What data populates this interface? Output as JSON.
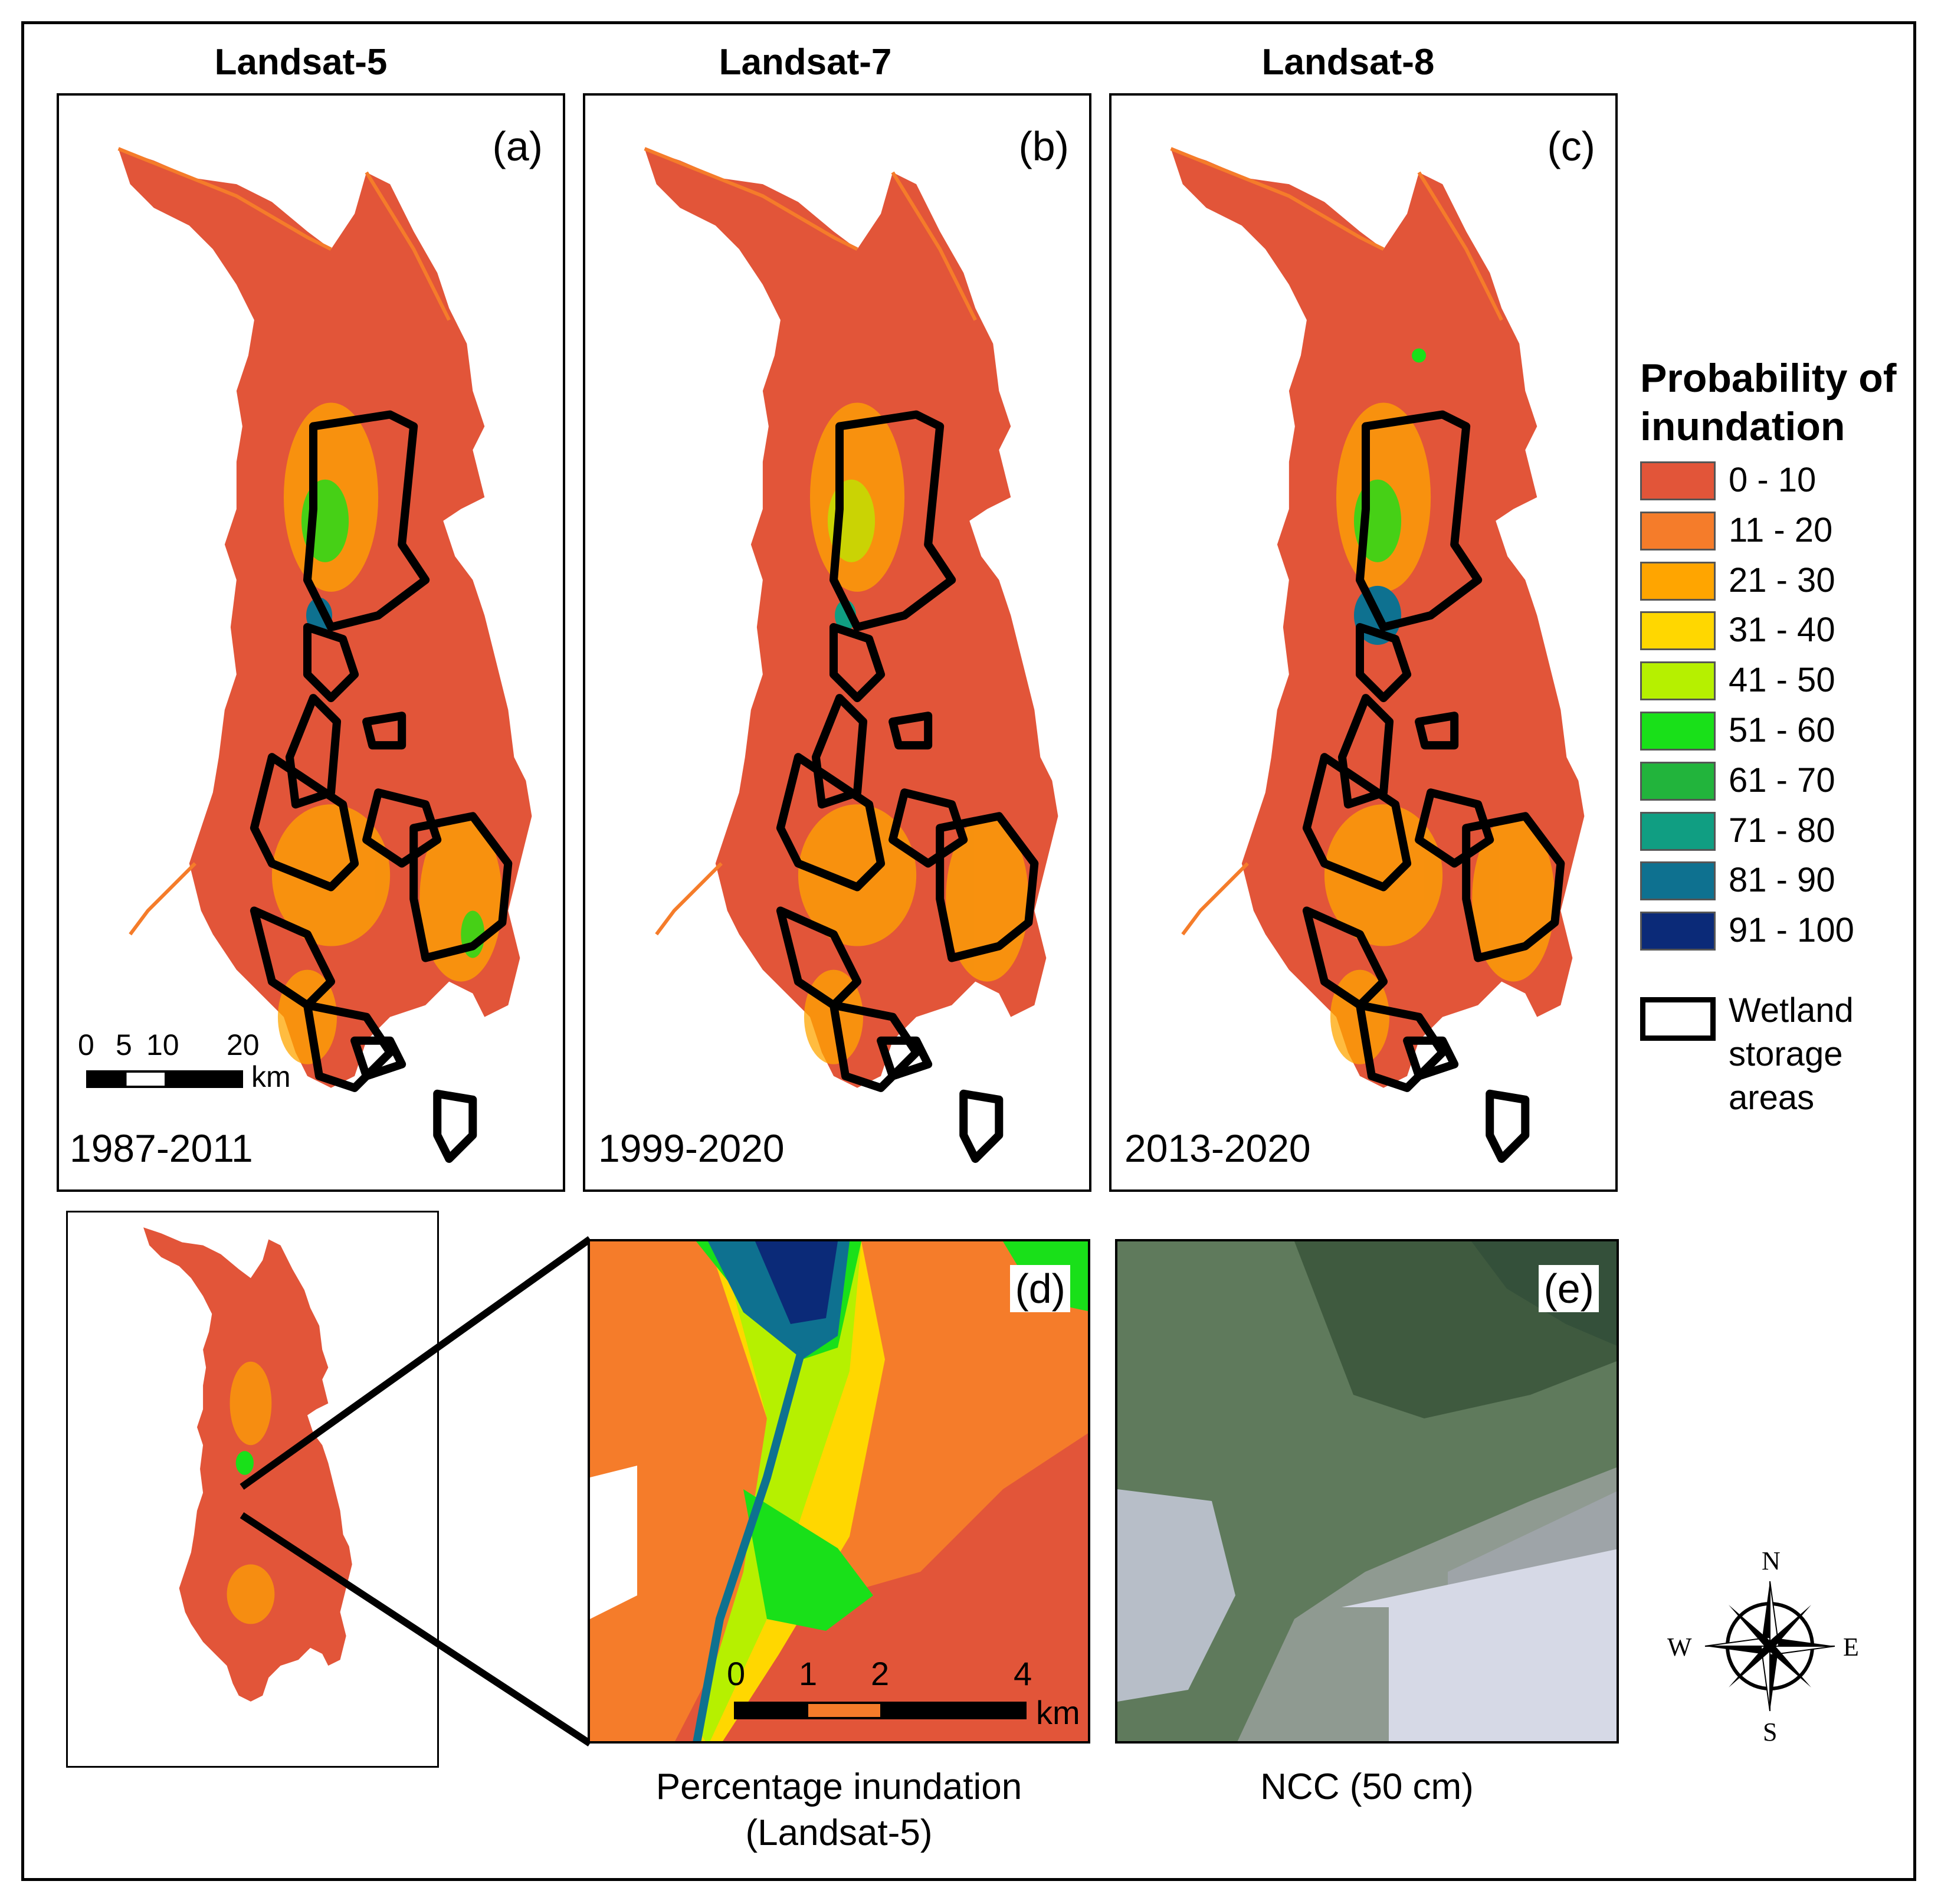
{
  "columns": [
    {
      "title": "Landsat-5",
      "letter": "(a)",
      "period": "1987-2011"
    },
    {
      "title": "Landsat-7",
      "letter": "(b)",
      "period": "1999-2020"
    },
    {
      "title": "Landsat-8",
      "letter": "(c)",
      "period": "2013-2020"
    }
  ],
  "scalebar_top": {
    "ticks": [
      "0",
      "5",
      "10",
      "20"
    ],
    "unit": "km"
  },
  "legend": {
    "title_line1": "Probability of",
    "title_line2": "inundation",
    "classes": [
      {
        "label": "0 - 10",
        "color": "#e25539"
      },
      {
        "label": "11 - 20",
        "color": "#f57c2a"
      },
      {
        "label": "21 - 30",
        "color": "#ffa500"
      },
      {
        "label": "31 - 40",
        "color": "#ffd700"
      },
      {
        "label": "41 - 50",
        "color": "#b6f000"
      },
      {
        "label": "51 - 60",
        "color": "#19e019"
      },
      {
        "label": "61 - 70",
        "color": "#22b43c"
      },
      {
        "label": "71 - 80",
        "color": "#109e82"
      },
      {
        "label": "81 - 90",
        "color": "#0e7190"
      },
      {
        "label": "91 - 100",
        "color": "#0b2a78"
      }
    ],
    "wetland_line1": "Wetland",
    "wetland_line2": "storage",
    "wetland_line3": "areas"
  },
  "panel_d": {
    "letter": "(d)",
    "scale_ticks": [
      "0",
      "1",
      "2",
      "4"
    ],
    "unit": "km",
    "caption_line1": "Percentage inundation",
    "caption_line2": "(Landsat-5)"
  },
  "panel_e": {
    "letter": "(e)",
    "caption": "NCC (50 cm)"
  },
  "compass": {
    "n": "N",
    "s": "S",
    "e": "E",
    "w": "W"
  }
}
